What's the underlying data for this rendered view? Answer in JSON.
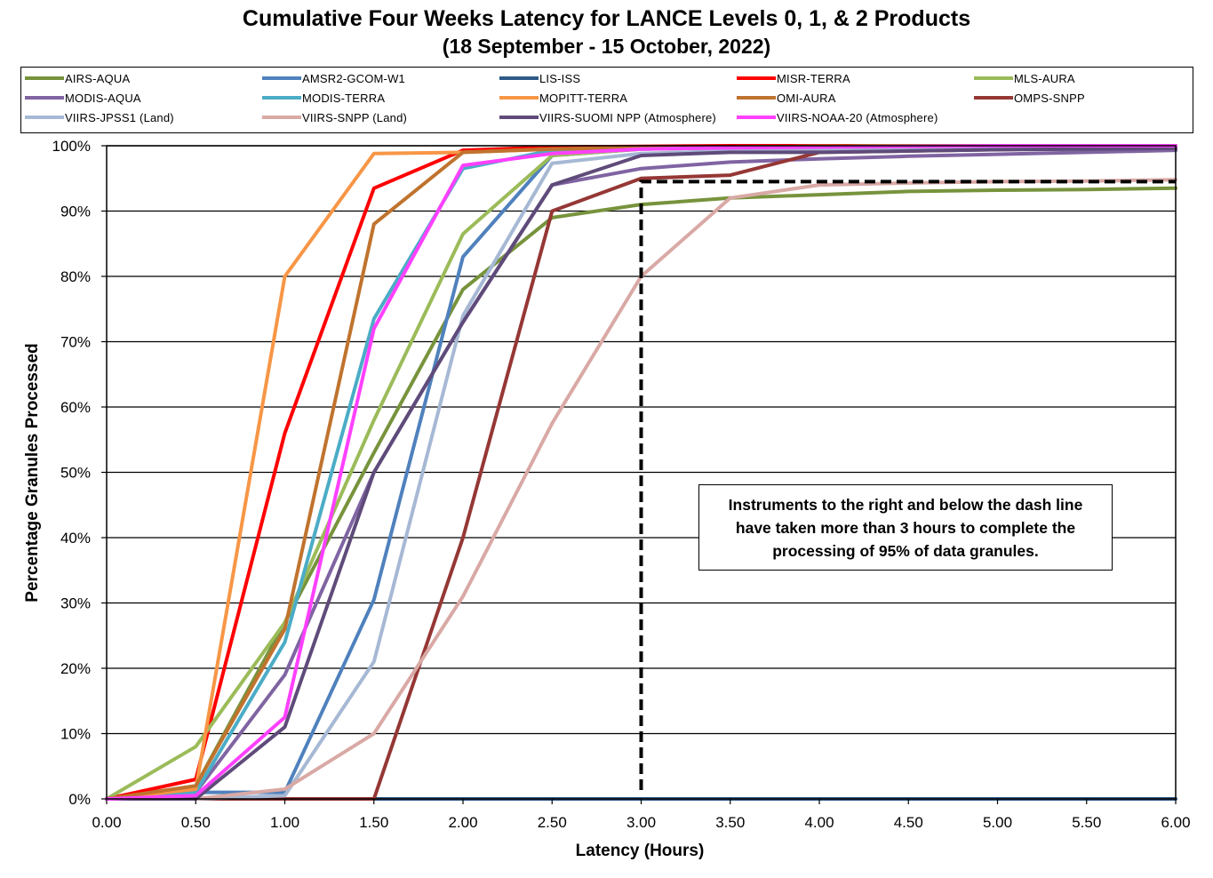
{
  "chart_data": {
    "type": "line",
    "title": "Cumulative Four Weeks Latency  for LANCE Levels 0, 1, & 2 Products",
    "subtitle": "(18  September   -  15  October,  2022)",
    "xlabel": "Latency (Hours)",
    "ylabel": "Percentage Granules Processed",
    "xlim": [
      0,
      6
    ],
    "ylim": [
      0,
      100
    ],
    "x_ticks": [
      "0.00",
      "0.50",
      "1.00",
      "1.50",
      "2.00",
      "2.50",
      "3.00",
      "3.50",
      "4.00",
      "4.50",
      "5.00",
      "5.50",
      "6.00"
    ],
    "y_ticks": [
      "0%",
      "10%",
      "20%",
      "30%",
      "40%",
      "50%",
      "60%",
      "70%",
      "80%",
      "90%",
      "100%"
    ],
    "grid": "horizontal",
    "legend_position": "top",
    "x": [
      0,
      0.5,
      1,
      1.5,
      2,
      2.5,
      3,
      3.5,
      4,
      4.5,
      5,
      5.5,
      6
    ],
    "series": [
      {
        "name": "AIRS-AQUA",
        "color": "#77933C",
        "values": [
          0,
          2,
          27,
          53,
          78,
          89,
          91,
          92,
          92.5,
          93,
          93.2,
          93.3,
          93.5
        ]
      },
      {
        "name": "AMSR2-GCOM-W1",
        "color": "#4F81BD",
        "values": [
          0,
          1,
          1,
          30.5,
          83,
          98.5,
          99.5,
          99.7,
          99.8,
          99.9,
          99.9,
          99.9,
          100
        ]
      },
      {
        "name": "LIS-ISS",
        "color": "#2E5A87",
        "values": [
          0,
          0,
          0,
          0,
          0,
          0,
          0,
          0,
          0,
          0,
          0,
          0,
          0
        ]
      },
      {
        "name": "MISR-TERRA",
        "color": "#FF0000",
        "values": [
          0,
          3,
          56,
          93.5,
          99.3,
          99.8,
          99.9,
          100,
          100,
          100,
          100,
          100,
          100
        ]
      },
      {
        "name": "MLS-AURA",
        "color": "#9BBB59",
        "values": [
          0,
          8,
          27,
          58,
          86.5,
          98.5,
          99.5,
          99.7,
          99.8,
          99.9,
          99.9,
          100,
          100
        ]
      },
      {
        "name": "MODIS-AQUA",
        "color": "#8064A2",
        "values": [
          0,
          1,
          19,
          50,
          73,
          94,
          96.5,
          97.5,
          98,
          98.4,
          98.7,
          99,
          99.3
        ]
      },
      {
        "name": "MODIS-TERRA",
        "color": "#4BACC6",
        "values": [
          0,
          1,
          24,
          73.5,
          96.5,
          99.3,
          99.7,
          99.8,
          99.9,
          100,
          100,
          100,
          100
        ]
      },
      {
        "name": "MOPITT-TERRA",
        "color": "#F79646",
        "values": [
          0,
          1.5,
          80,
          98.8,
          99,
          99.5,
          99.7,
          99.8,
          99.9,
          100,
          100,
          100,
          100
        ]
      },
      {
        "name": "OMI-AURA",
        "color": "#C0732E",
        "values": [
          0,
          2,
          26,
          88,
          99,
          99.5,
          99.7,
          99.8,
          99.9,
          100,
          100,
          100,
          100
        ]
      },
      {
        "name": "OMPS-SNPP",
        "color": "#953735",
        "values": [
          0,
          0,
          0,
          0,
          40,
          90,
          95,
          95.5,
          99,
          99.2,
          99.4,
          99.6,
          99.8
        ]
      },
      {
        "name": "VIIRS-JPSS1 (Land)",
        "color": "#A6B8D4",
        "values": [
          0,
          0,
          0.5,
          21,
          74,
          97.3,
          98.8,
          99.2,
          99.5,
          99.7,
          99.8,
          99.9,
          100
        ]
      },
      {
        "name": "VIIRS-SNPP (Land)",
        "color": "#D9A9A5",
        "values": [
          0,
          0,
          1.5,
          10,
          31,
          57.5,
          80,
          92,
          94,
          94.3,
          94.5,
          94.6,
          94.8
        ]
      },
      {
        "name": "VIIRS-SUOMI NPP (Atmosphere)",
        "color": "#5F4B7A",
        "values": [
          0,
          0,
          11,
          50,
          73,
          94,
          98.5,
          99,
          99,
          99.2,
          99.4,
          99.5,
          99.6
        ]
      },
      {
        "name": "VIIRS-NOAA-20 (Atmosphere)",
        "color": "#FF40FF",
        "values": [
          0,
          0.5,
          12.5,
          72,
          97,
          98.8,
          99.5,
          99.7,
          99.8,
          99.9,
          100,
          100,
          100
        ]
      }
    ],
    "threshold_line": {
      "x": 3,
      "y": 94.5,
      "style": "dashed"
    },
    "annotation": "Instruments to the right and below the dash line have taken more than 3 hours to complete the processing of 95% of data granules."
  }
}
